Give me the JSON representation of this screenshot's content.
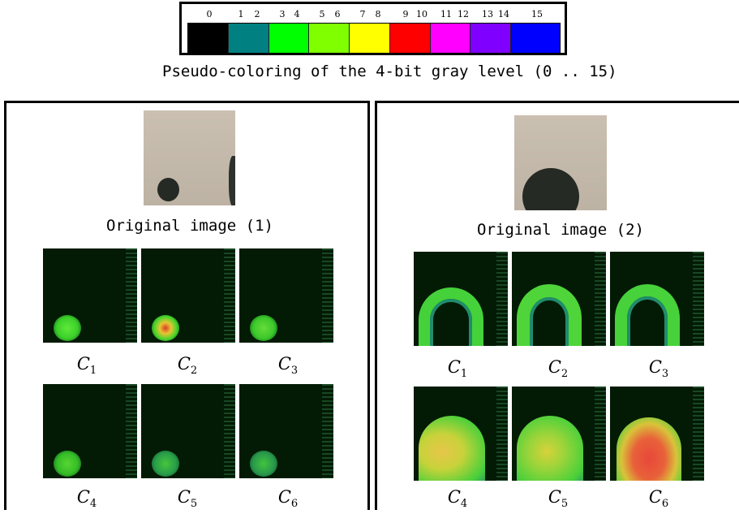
{
  "legend": {
    "tick_labels": [
      {
        "text": "0"
      },
      {
        "text": "1"
      },
      {
        "text": "2"
      },
      {
        "text": "3"
      },
      {
        "text": "4"
      },
      {
        "text": "5"
      },
      {
        "text": "6"
      },
      {
        "text": "7"
      },
      {
        "text": "8"
      },
      {
        "text": "9"
      },
      {
        "text": "10"
      },
      {
        "text": "11"
      },
      {
        "text": "12"
      },
      {
        "text": "13"
      },
      {
        "text": "14"
      },
      {
        "text": "15"
      }
    ],
    "swatches": [
      {
        "levels": "0",
        "color": "#000000"
      },
      {
        "levels": "1-2",
        "color": "#008080"
      },
      {
        "levels": "3-4",
        "color": "#00ff00"
      },
      {
        "levels": "5-6",
        "color": "#80ff00"
      },
      {
        "levels": "7-8",
        "color": "#ffff00"
      },
      {
        "levels": "9-10",
        "color": "#ff0000"
      },
      {
        "levels": "11-12",
        "color": "#ff00ff"
      },
      {
        "levels": "13-14",
        "color": "#8000ff"
      },
      {
        "levels": "15",
        "color": "#0000ff"
      }
    ],
    "caption": "Pseudo-coloring of the 4-bit gray level (0 .. 15)"
  },
  "panels": [
    {
      "original_label": "Original image (1)",
      "components": [
        {
          "base": "C",
          "sub": "1"
        },
        {
          "base": "C",
          "sub": "2"
        },
        {
          "base": "C",
          "sub": "3"
        },
        {
          "base": "C",
          "sub": "4"
        },
        {
          "base": "C",
          "sub": "5"
        },
        {
          "base": "C",
          "sub": "6"
        }
      ]
    },
    {
      "original_label": "Original image (2)",
      "components": [
        {
          "base": "C",
          "sub": "1"
        },
        {
          "base": "C",
          "sub": "2"
        },
        {
          "base": "C",
          "sub": "3"
        },
        {
          "base": "C",
          "sub": "4"
        },
        {
          "base": "C",
          "sub": "5"
        },
        {
          "base": "C",
          "sub": "6"
        }
      ]
    }
  ]
}
